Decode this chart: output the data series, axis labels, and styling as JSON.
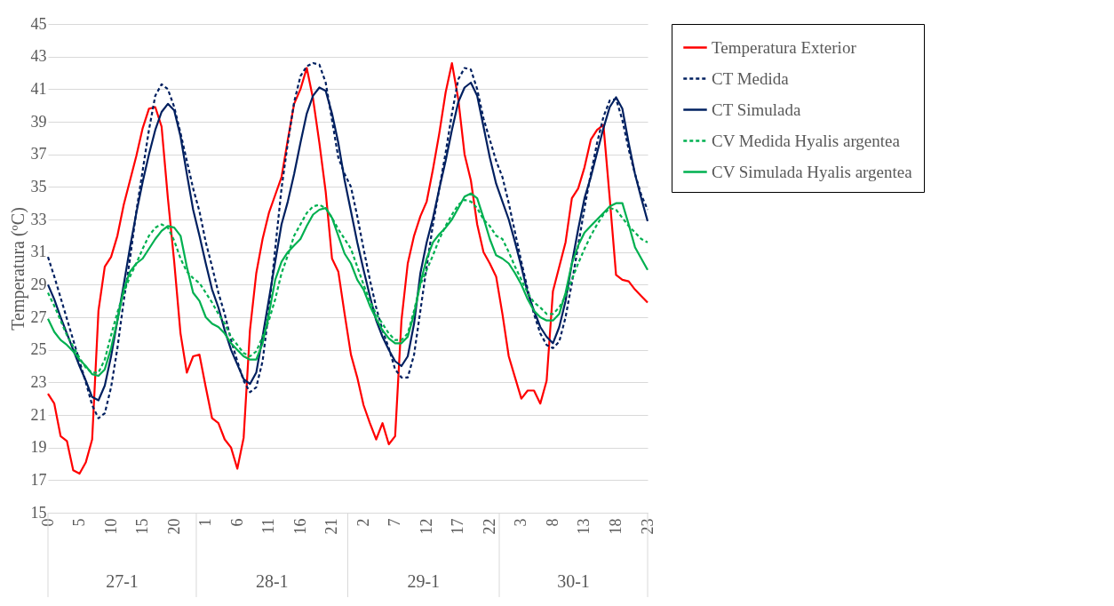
{
  "chart_data": {
    "type": "line",
    "ylabel": "Temperatura (ºC)",
    "categories": [
      "0",
      null,
      null,
      null,
      null,
      "5",
      null,
      null,
      null,
      null,
      "10",
      null,
      null,
      null,
      null,
      "15",
      null,
      null,
      null,
      null,
      "20",
      null,
      null,
      null,
      null,
      "1",
      null,
      null,
      null,
      null,
      "6",
      null,
      null,
      null,
      null,
      "11",
      null,
      null,
      null,
      null,
      "16",
      null,
      null,
      null,
      null,
      "21",
      null,
      null,
      null,
      null,
      "2",
      null,
      null,
      null,
      null,
      "7",
      null,
      null,
      null,
      null,
      "12",
      null,
      null,
      null,
      null,
      "17",
      null,
      null,
      null,
      null,
      "22",
      null,
      null,
      null,
      null,
      "3",
      null,
      null,
      null,
      null,
      "8",
      null,
      null,
      null,
      null,
      "13",
      null,
      null,
      null,
      null,
      "18",
      null,
      null,
      null,
      null,
      "23"
    ],
    "annotations": [
      "27-1",
      "28-1",
      "29-1",
      "30-1"
    ],
    "ylim": [
      15,
      45
    ],
    "yticks": [
      15,
      17,
      19,
      21,
      23,
      25,
      27,
      29,
      31,
      33,
      35,
      37,
      39,
      41,
      43,
      45
    ],
    "grid": "y",
    "legend": "right",
    "series": [
      {
        "name": "Temperatura Exterior",
        "color": "#ff0000",
        "line_style": "solid",
        "values": [
          22.3,
          21.7,
          19.7,
          19.4,
          17.6,
          17.4,
          18.1,
          19.5,
          27.4,
          30.1,
          30.7,
          32.0,
          33.9,
          35.4,
          36.9,
          38.6,
          39.8,
          39.9,
          38.7,
          34.3,
          30.4,
          26.0,
          23.6,
          24.6,
          24.7,
          22.7,
          20.8,
          20.5,
          19.5,
          19.0,
          17.7,
          19.6,
          26.2,
          29.7,
          31.8,
          33.4,
          34.5,
          35.6,
          37.9,
          40.1,
          41.0,
          42.3,
          40.4,
          37.7,
          34.7,
          30.6,
          29.8,
          27.2,
          24.7,
          23.3,
          21.6,
          20.5,
          19.5,
          20.5,
          19.2,
          19.7,
          26.8,
          30.3,
          32.0,
          33.2,
          34.1,
          36.1,
          38.3,
          40.8,
          42.6,
          40.4,
          37.0,
          35.4,
          32.7,
          31.0,
          30.3,
          29.5,
          27.2,
          24.6,
          23.3,
          22.0,
          22.5,
          22.5,
          21.7,
          23.1,
          28.6,
          30.1,
          31.6,
          34.3,
          34.9,
          36.2,
          37.9,
          38.5,
          38.8,
          34.3,
          29.6,
          29.3,
          29.2,
          28.7,
          28.3,
          27.9
        ]
      },
      {
        "name": "CT Medida",
        "color": "#002060",
        "line_style": "dashed",
        "values": [
          30.7,
          29.5,
          28.2,
          26.9,
          25.6,
          24.3,
          23.0,
          21.6,
          20.8,
          21.1,
          22.7,
          25.1,
          28.0,
          30.6,
          33.5,
          36.0,
          38.5,
          40.6,
          41.3,
          41.0,
          39.9,
          38.3,
          36.6,
          34.9,
          33.5,
          31.6,
          30.1,
          28.5,
          27.2,
          25.6,
          24.3,
          23.1,
          22.4,
          22.7,
          24.3,
          27.4,
          31.2,
          34.9,
          37.7,
          40.2,
          41.8,
          42.4,
          42.6,
          42.5,
          41.4,
          39.1,
          36.8,
          35.8,
          35.0,
          33.2,
          31.2,
          29.3,
          27.6,
          26.2,
          25.1,
          23.8,
          23.3,
          23.3,
          24.7,
          27.4,
          30.1,
          32.7,
          34.9,
          37.1,
          39.5,
          41.6,
          42.3,
          42.2,
          41.0,
          39.2,
          37.9,
          36.6,
          35.6,
          34.0,
          32.2,
          30.4,
          28.7,
          27.2,
          26.0,
          25.3,
          25.1,
          25.5,
          27.0,
          29.1,
          31.4,
          33.7,
          35.8,
          37.7,
          39.3,
          40.3,
          40.4,
          39.1,
          37.3,
          35.8,
          34.5,
          33.6
        ]
      },
      {
        "name": "CT Simulada",
        "color": "#002060",
        "line_style": "solid",
        "values": [
          29.0,
          28.1,
          27.0,
          26.0,
          25.0,
          24.0,
          23.1,
          22.1,
          21.9,
          22.8,
          24.6,
          26.8,
          29.0,
          31.3,
          33.4,
          35.3,
          37.0,
          38.5,
          39.6,
          40.1,
          39.7,
          38.1,
          35.8,
          33.6,
          32.0,
          30.3,
          28.7,
          27.6,
          26.2,
          25.0,
          24.1,
          23.2,
          22.9,
          23.6,
          25.8,
          28.1,
          30.4,
          32.7,
          34.1,
          35.8,
          37.7,
          39.5,
          40.6,
          41.1,
          40.9,
          39.5,
          37.7,
          35.4,
          33.5,
          31.6,
          29.9,
          28.3,
          26.8,
          25.8,
          25.0,
          24.3,
          24.0,
          24.6,
          26.6,
          29.7,
          31.6,
          33.1,
          34.9,
          36.6,
          38.5,
          40.2,
          41.1,
          41.4,
          40.6,
          38.7,
          36.8,
          35.2,
          34.1,
          33.0,
          31.6,
          30.1,
          28.5,
          27.4,
          26.4,
          25.8,
          25.4,
          26.4,
          28.0,
          30.3,
          32.4,
          34.3,
          35.6,
          37.1,
          38.6,
          39.9,
          40.5,
          39.8,
          37.7,
          35.8,
          34.3,
          32.9
        ]
      },
      {
        "name": "CV Medida Hyalis argentea",
        "color": "#00b050",
        "line_style": "dashed",
        "values": [
          28.5,
          27.7,
          26.8,
          25.9,
          25.2,
          24.5,
          23.9,
          23.6,
          23.6,
          24.4,
          25.9,
          27.3,
          28.5,
          29.5,
          30.3,
          31.2,
          32.0,
          32.5,
          32.7,
          32.5,
          31.7,
          30.6,
          29.8,
          29.4,
          29.1,
          28.5,
          27.9,
          27.2,
          26.6,
          25.8,
          25.3,
          24.8,
          24.6,
          24.9,
          25.8,
          26.8,
          28.1,
          29.7,
          30.8,
          32.0,
          32.7,
          33.4,
          33.8,
          33.9,
          33.7,
          33.1,
          32.4,
          31.8,
          31.2,
          30.1,
          29.0,
          28.0,
          27.2,
          26.6,
          26.0,
          25.6,
          25.6,
          26.0,
          27.4,
          29.0,
          29.9,
          30.8,
          31.8,
          32.6,
          33.3,
          33.9,
          34.2,
          34.1,
          33.7,
          33.0,
          32.6,
          32.0,
          31.8,
          31.0,
          30.1,
          29.3,
          28.5,
          27.9,
          27.6,
          27.2,
          27.2,
          27.6,
          28.3,
          29.3,
          30.3,
          31.2,
          32.0,
          32.7,
          33.3,
          33.7,
          33.6,
          33.1,
          32.6,
          32.2,
          31.8,
          31.6
        ]
      },
      {
        "name": "CV Simulada Hyalis argentea",
        "color": "#00b050",
        "line_style": "solid",
        "values": [
          26.9,
          26.1,
          25.6,
          25.3,
          24.9,
          24.4,
          24.0,
          23.5,
          23.4,
          23.8,
          25.1,
          26.8,
          28.7,
          29.8,
          30.3,
          30.6,
          31.2,
          31.8,
          32.3,
          32.6,
          32.5,
          32.0,
          30.1,
          28.5,
          28.0,
          27.0,
          26.6,
          26.4,
          26.0,
          25.4,
          25.0,
          24.6,
          24.4,
          24.4,
          25.4,
          27.2,
          29.3,
          30.4,
          31.0,
          31.4,
          31.8,
          32.6,
          33.3,
          33.6,
          33.7,
          33.1,
          32.0,
          30.9,
          30.3,
          29.3,
          28.7,
          27.7,
          26.9,
          26.2,
          25.7,
          25.4,
          25.4,
          25.8,
          27.2,
          29.1,
          30.6,
          31.6,
          32.1,
          32.5,
          33.0,
          33.7,
          34.4,
          34.6,
          34.3,
          33.1,
          31.8,
          30.8,
          30.6,
          30.3,
          29.7,
          29.0,
          28.1,
          27.4,
          27.0,
          26.8,
          26.8,
          27.2,
          28.5,
          30.3,
          31.4,
          32.2,
          32.6,
          33.0,
          33.4,
          33.8,
          34.0,
          34.0,
          32.7,
          31.3,
          30.6,
          29.9
        ]
      }
    ]
  }
}
